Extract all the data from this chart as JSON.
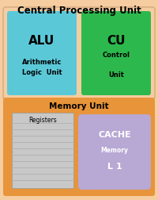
{
  "bg_color": "#f5cda0",
  "title": "Central Processing Unit",
  "title_fontsize": 8.5,
  "title_fontweight": "bold",
  "alu_color": "#5bc8d8",
  "alu_label": "ALU",
  "alu_sub": "Arithmetic\nLogic  Unit",
  "cu_color": "#2db84d",
  "cu_label": "CU",
  "cu_sub": "Control\n\nUnit",
  "memory_box_color": "#e8943a",
  "memory_label": "Memory Unit",
  "reg_color": "#c8c8c8",
  "reg_label": "Registers",
  "reg_line_color": "#b0b0b0",
  "cache_color": "#b8a8d4",
  "cache_label": "CACHE",
  "cache_sub1": "Memory",
  "cache_sub2": "L 1"
}
